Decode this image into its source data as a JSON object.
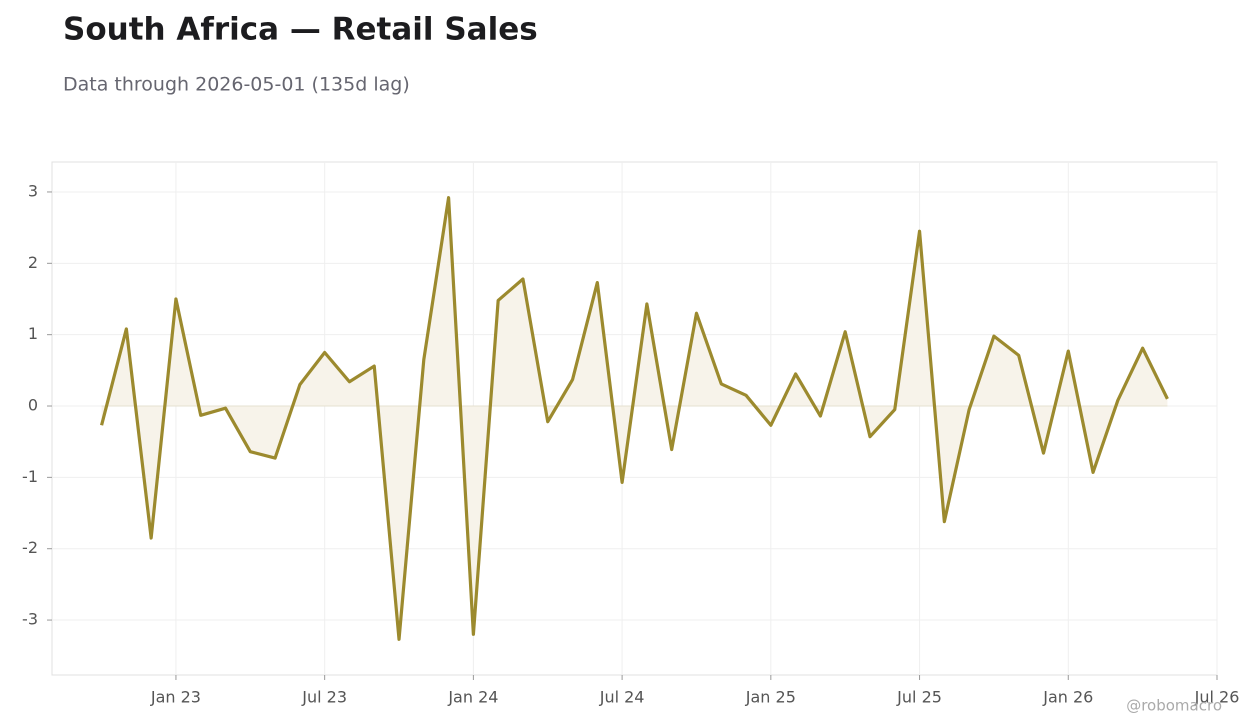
{
  "chart_data": {
    "type": "line",
    "title": "South Africa — Retail Sales",
    "subtitle": "Data through 2026-05-01 (135d lag)",
    "watermark": "@robomacro",
    "x": [
      "2022-10",
      "2022-11",
      "2022-12",
      "2023-01",
      "2023-02",
      "2023-03",
      "2023-04",
      "2023-05",
      "2023-06",
      "2023-07",
      "2023-08",
      "2023-09",
      "2023-10",
      "2023-11",
      "2023-12",
      "2024-01",
      "2024-02",
      "2024-03",
      "2024-04",
      "2024-05",
      "2024-06",
      "2024-07",
      "2024-08",
      "2024-09",
      "2024-10",
      "2024-11",
      "2024-12",
      "2025-01",
      "2025-02",
      "2025-03",
      "2025-04",
      "2025-05",
      "2025-06",
      "2025-07",
      "2025-08",
      "2025-09",
      "2025-10",
      "2025-11",
      "2025-12",
      "2026-01",
      "2026-02",
      "2026-03",
      "2026-04",
      "2026-05"
    ],
    "series": [
      {
        "color": "#9c8a2e",
        "fill": "#f7f3ea",
        "values": [
          -0.27,
          1.08,
          -1.85,
          1.5,
          -0.13,
          -0.03,
          -0.64,
          -0.73,
          0.3,
          0.75,
          0.34,
          0.56,
          -3.27,
          0.65,
          2.92,
          -3.2,
          1.48,
          1.78,
          -0.22,
          0.37,
          1.73,
          -1.07,
          1.43,
          -0.61,
          1.3,
          0.31,
          0.15,
          -0.27,
          0.45,
          -0.14,
          1.04,
          -0.43,
          -0.05,
          2.45,
          -1.62,
          -0.05,
          0.98,
          0.71,
          -0.66,
          0.77,
          -0.93,
          0.08,
          0.81,
          0.1
        ]
      }
    ],
    "xlim": [
      "2022-08",
      "2026-07"
    ],
    "xticks": [
      {
        "value": "2023-01",
        "label": "Jan 23"
      },
      {
        "value": "2023-07",
        "label": "Jul 23"
      },
      {
        "value": "2024-01",
        "label": "Jan 24"
      },
      {
        "value": "2024-07",
        "label": "Jul 24"
      },
      {
        "value": "2025-01",
        "label": "Jan 25"
      },
      {
        "value": "2025-07",
        "label": "Jul 25"
      },
      {
        "value": "2026-01",
        "label": "Jan 26"
      },
      {
        "value": "2026-07",
        "label": "Jul 26"
      }
    ],
    "ylim": [
      -3.77,
      3.42
    ],
    "yticks": [
      -3,
      -2,
      -1,
      0,
      1,
      2,
      3
    ],
    "grid": true
  }
}
